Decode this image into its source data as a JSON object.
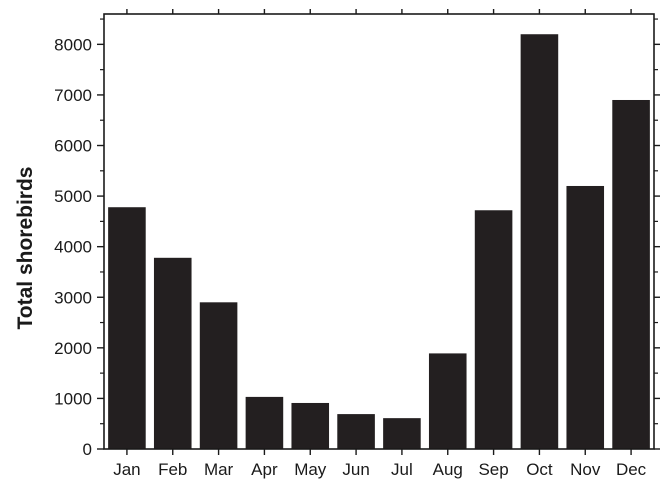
{
  "chart_data": {
    "type": "bar",
    "title": "",
    "xlabel": "",
    "ylabel": "Total shorebirds",
    "categories": [
      "Jan",
      "Feb",
      "Mar",
      "Apr",
      "May",
      "Jun",
      "Jul",
      "Aug",
      "Sep",
      "Oct",
      "Nov",
      "Dec"
    ],
    "values": [
      4780,
      3780,
      2900,
      1030,
      910,
      690,
      610,
      1890,
      4720,
      8200,
      5200,
      6900
    ],
    "ylim": [
      0,
      8600
    ],
    "yticks": [
      0,
      1000,
      2000,
      3000,
      4000,
      5000,
      6000,
      7000,
      8000
    ],
    "grid": false,
    "legend": "none",
    "bar_color": "#231f20",
    "axis_color": "#1a1a1a"
  }
}
